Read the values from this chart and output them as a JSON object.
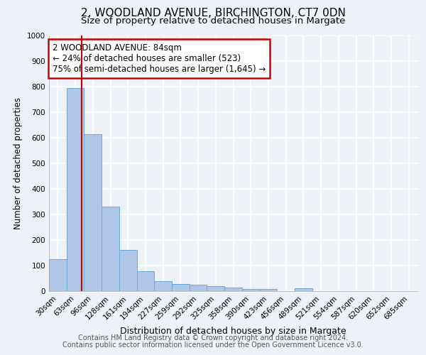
{
  "title": "2, WOODLAND AVENUE, BIRCHINGTON, CT7 0DN",
  "subtitle": "Size of property relative to detached houses in Margate",
  "xlabel": "Distribution of detached houses by size in Margate",
  "ylabel": "Number of detached properties",
  "categories": [
    "30sqm",
    "63sqm",
    "96sqm",
    "128sqm",
    "161sqm",
    "194sqm",
    "227sqm",
    "259sqm",
    "292sqm",
    "325sqm",
    "358sqm",
    "390sqm",
    "423sqm",
    "456sqm",
    "489sqm",
    "521sqm",
    "554sqm",
    "587sqm",
    "620sqm",
    "652sqm",
    "685sqm"
  ],
  "values": [
    125,
    795,
    615,
    330,
    160,
    78,
    38,
    27,
    25,
    20,
    13,
    8,
    8,
    0,
    10,
    0,
    0,
    0,
    0,
    0,
    0
  ],
  "bar_color": "#aec6e8",
  "bar_edge_color": "#6aaad4",
  "red_line_x": 1.35,
  "red_line_color": "#cc0000",
  "ylim": [
    0,
    1000
  ],
  "yticks": [
    0,
    100,
    200,
    300,
    400,
    500,
    600,
    700,
    800,
    900,
    1000
  ],
  "annotation_text": "2 WOODLAND AVENUE: 84sqm\n← 24% of detached houses are smaller (523)\n75% of semi-detached houses are larger (1,645) →",
  "annotation_box_color": "#ffffff",
  "annotation_box_edge_color": "#cc0000",
  "footer_line1": "Contains HM Land Registry data © Crown copyright and database right 2024.",
  "footer_line2": "Contains public sector information licensed under the Open Government Licence v3.0.",
  "background_color": "#eef2f8",
  "grid_color": "#ffffff",
  "title_fontsize": 11,
  "subtitle_fontsize": 9.5,
  "ylabel_fontsize": 8.5,
  "xlabel_fontsize": 9,
  "tick_fontsize": 7.5,
  "annotation_fontsize": 8.5,
  "footer_fontsize": 7.0
}
